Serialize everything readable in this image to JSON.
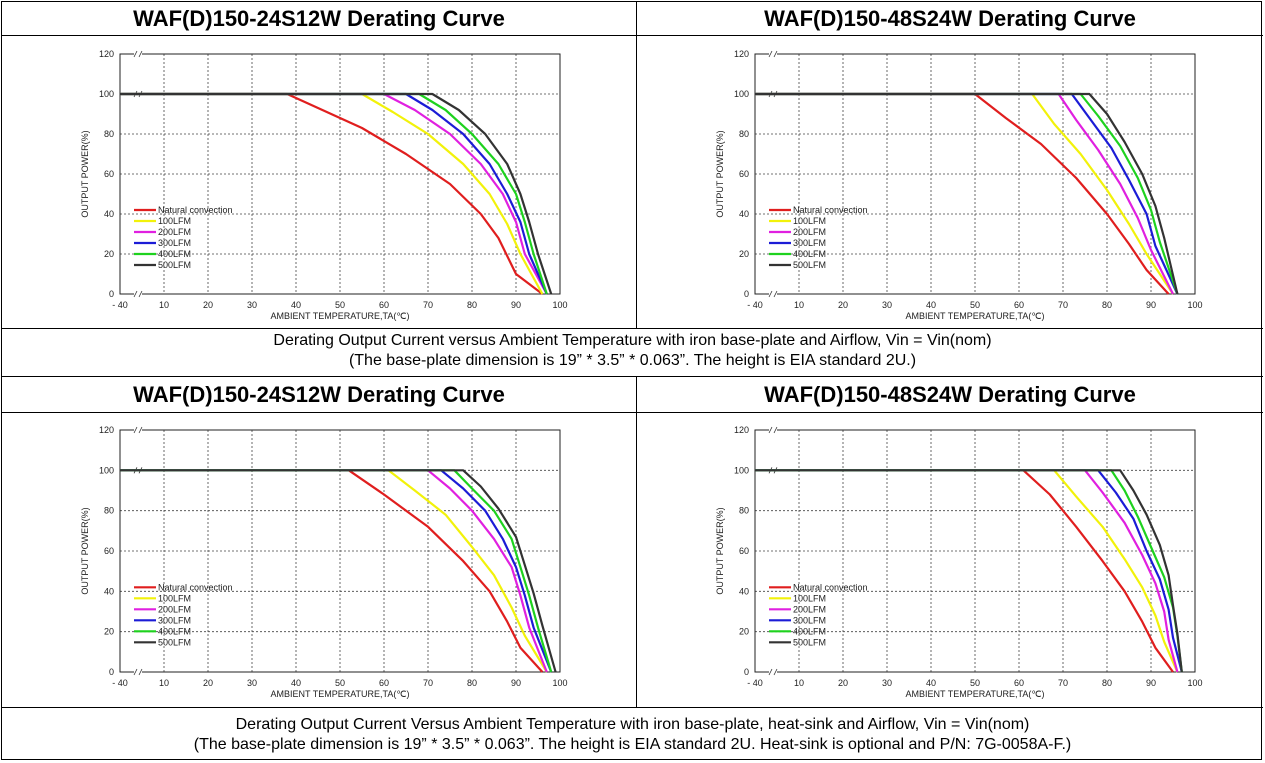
{
  "panels": [
    {
      "title": "WAF(D)150-24S12W Derating Curve",
      "chart_data": {
        "type": "line",
        "xlabel": "AMBIENT TEMPERATURE,TA(℃)",
        "ylabel": "OUTPUT POWER(%)",
        "x_ticks": [
          "- 40",
          "10",
          "20",
          "30",
          "40",
          "50",
          "60",
          "70",
          "80",
          "90",
          "100"
        ],
        "y_ticks": [
          0,
          20,
          40,
          60,
          80,
          100,
          120
        ],
        "xlim": [
          5,
          100
        ],
        "ylim": [
          0,
          120
        ],
        "grid": true,
        "axis_break": true,
        "legend_position": "bottom-left",
        "series": [
          {
            "name": "Natural convection",
            "color": "#e01e1e",
            "x": [
              -40,
              38,
              45,
              55,
              65,
              75,
              82,
              86,
              90,
              96
            ],
            "y": [
              100,
              100,
              93,
              83,
              70,
              55,
              40,
              28,
              10,
              0
            ]
          },
          {
            "name": "100LFM",
            "color": "#f2f20a",
            "x": [
              -40,
              55,
              62,
              70,
              78,
              84,
              88,
              91,
              96
            ],
            "y": [
              100,
              100,
              91,
              80,
              65,
              50,
              35,
              20,
              0
            ]
          },
          {
            "name": "200LFM",
            "color": "#e020e0",
            "x": [
              -40,
              60,
              67,
              75,
              82,
              87,
              90,
              92,
              97
            ],
            "y": [
              100,
              100,
              92,
              80,
              65,
              50,
              36,
              20,
              0
            ]
          },
          {
            "name": "300LFM",
            "color": "#1c1cd6",
            "x": [
              -40,
              65,
              71,
              78,
              84,
              88,
              91,
              93,
              97
            ],
            "y": [
              100,
              100,
              92,
              80,
              65,
              50,
              36,
              20,
              0
            ]
          },
          {
            "name": "400LFM",
            "color": "#1ed21e",
            "x": [
              -40,
              68,
              74,
              80,
              86,
              90,
              92,
              94,
              97
            ],
            "y": [
              100,
              100,
              92,
              80,
              65,
              50,
              36,
              20,
              0
            ]
          },
          {
            "name": "500LFM",
            "color": "#333333",
            "x": [
              -40,
              71,
              77,
              83,
              88,
              91,
              93,
              95,
              98
            ],
            "y": [
              100,
              100,
              92,
              80,
              65,
              50,
              36,
              20,
              0
            ]
          }
        ]
      }
    },
    {
      "title": "WAF(D)150-48S24W Derating Curve",
      "chart_data": {
        "type": "line",
        "xlabel": "AMBIENT TEMPERATURE,TA(℃)",
        "ylabel": "OUTPUT POWER(%)",
        "x_ticks": [
          "- 40",
          "10",
          "20",
          "30",
          "40",
          "50",
          "60",
          "70",
          "80",
          "90",
          "100"
        ],
        "y_ticks": [
          0,
          20,
          40,
          60,
          80,
          100,
          120
        ],
        "xlim": [
          5,
          100
        ],
        "ylim": [
          0,
          120
        ],
        "grid": true,
        "axis_break": true,
        "legend_position": "bottom-left",
        "series": [
          {
            "name": "Natural convection",
            "color": "#e01e1e",
            "x": [
              -40,
              50,
              57,
              65,
              73,
              80,
              85,
              89,
              94
            ],
            "y": [
              100,
              100,
              88,
              75,
              58,
              40,
              25,
              12,
              0
            ]
          },
          {
            "name": "100LFM",
            "color": "#f2f20a",
            "x": [
              -40,
              63,
              68,
              74,
              80,
              85,
              89,
              95
            ],
            "y": [
              100,
              100,
              85,
              70,
              52,
              35,
              20,
              0
            ]
          },
          {
            "name": "200LFM",
            "color": "#e020e0",
            "x": [
              -40,
              69,
              73,
              78,
              83,
              87,
              90,
              95
            ],
            "y": [
              100,
              100,
              87,
              72,
              55,
              38,
              22,
              0
            ]
          },
          {
            "name": "300LFM",
            "color": "#1c1cd6",
            "x": [
              -40,
              72,
              76,
              81,
              85,
              89,
              91,
              96
            ],
            "y": [
              100,
              100,
              88,
              73,
              57,
              40,
              24,
              0
            ]
          },
          {
            "name": "400LFM",
            "color": "#1ed21e",
            "x": [
              -40,
              74,
              78,
              83,
              87,
              90,
              92,
              96
            ],
            "y": [
              100,
              100,
              89,
              74,
              58,
              42,
              26,
              0
            ]
          },
          {
            "name": "500LFM",
            "color": "#333333",
            "x": [
              -40,
              76,
              80,
              84,
              88,
              91,
              93,
              96
            ],
            "y": [
              100,
              100,
              90,
              76,
              60,
              44,
              28,
              0
            ]
          }
        ]
      }
    },
    {
      "title": "WAF(D)150-24S12W Derating Curve",
      "chart_data": {
        "type": "line",
        "xlabel": "AMBIENT TEMPERATURE,TA(℃)",
        "ylabel": "OUTPUT POWER(%)",
        "x_ticks": [
          "- 40",
          "10",
          "20",
          "30",
          "40",
          "50",
          "60",
          "70",
          "80",
          "90",
          "100"
        ],
        "y_ticks": [
          0,
          20,
          40,
          60,
          80,
          100,
          120
        ],
        "xlim": [
          5,
          100
        ],
        "ylim": [
          0,
          120
        ],
        "grid": true,
        "axis_break": true,
        "legend_position": "bottom-left",
        "series": [
          {
            "name": "Natural convection",
            "color": "#e01e1e",
            "x": [
              -40,
              52,
              60,
              70,
              78,
              84,
              88,
              91,
              96
            ],
            "y": [
              100,
              100,
              88,
              72,
              55,
              40,
              25,
              12,
              0
            ]
          },
          {
            "name": "100LFM",
            "color": "#f2f20a",
            "x": [
              -40,
              61,
              67,
              74,
              80,
              85,
              89,
              92,
              97
            ],
            "y": [
              100,
              100,
              90,
              78,
              62,
              48,
              32,
              18,
              0
            ]
          },
          {
            "name": "200LFM",
            "color": "#e020e0",
            "x": [
              -40,
              70,
              75,
              80,
              85,
              89,
              91,
              93,
              97
            ],
            "y": [
              100,
              100,
              91,
              80,
              66,
              52,
              38,
              22,
              0
            ]
          },
          {
            "name": "300LFM",
            "color": "#1c1cd6",
            "x": [
              -40,
              73,
              78,
              83,
              87,
              90,
              92,
              94,
              98
            ],
            "y": [
              100,
              100,
              91,
              80,
              66,
              52,
              38,
              22,
              0
            ]
          },
          {
            "name": "400LFM",
            "color": "#1ed21e",
            "x": [
              -40,
              76,
              80,
              85,
              89,
              91,
              93,
              95,
              98
            ],
            "y": [
              100,
              100,
              91,
              80,
              66,
              52,
              38,
              22,
              0
            ]
          },
          {
            "name": "500LFM",
            "color": "#333333",
            "x": [
              -40,
              78,
              82,
              86,
              90,
              92,
              94,
              96,
              99
            ],
            "y": [
              100,
              100,
              92,
              81,
              67,
              53,
              39,
              23,
              0
            ]
          }
        ]
      }
    },
    {
      "title": "WAF(D)150-48S24W Derating Curve",
      "chart_data": {
        "type": "line",
        "xlabel": "AMBIENT TEMPERATURE,TA(℃)",
        "ylabel": "OUTPUT POWER(%)",
        "x_ticks": [
          "- 40",
          "10",
          "20",
          "30",
          "40",
          "50",
          "60",
          "70",
          "80",
          "90",
          "100"
        ],
        "y_ticks": [
          0,
          20,
          40,
          60,
          80,
          100,
          120
        ],
        "xlim": [
          5,
          100
        ],
        "ylim": [
          0,
          120
        ],
        "grid": true,
        "axis_break": true,
        "legend_position": "bottom-left",
        "series": [
          {
            "name": "Natural convection",
            "color": "#e01e1e",
            "x": [
              -40,
              61,
              67,
              73,
              79,
              84,
              88,
              91,
              95
            ],
            "y": [
              100,
              100,
              88,
              72,
              55,
              40,
              25,
              12,
              0
            ]
          },
          {
            "name": "100LFM",
            "color": "#f2f20a",
            "x": [
              -40,
              68,
              73,
              79,
              84,
              88,
              91,
              93,
              96
            ],
            "y": [
              100,
              100,
              87,
              72,
              56,
              42,
              28,
              15,
              0
            ]
          },
          {
            "name": "200LFM",
            "color": "#e020e0",
            "x": [
              -40,
              75,
              79,
              84,
              88,
              91,
              93,
              94,
              96
            ],
            "y": [
              100,
              100,
              89,
              74,
              58,
              44,
              30,
              16,
              0
            ]
          },
          {
            "name": "300LFM",
            "color": "#1c1cd6",
            "x": [
              -40,
              78,
              82,
              86,
              89,
              92,
              94,
              95,
              97
            ],
            "y": [
              100,
              100,
              89,
              76,
              60,
              46,
              31,
              17,
              0
            ]
          },
          {
            "name": "400LFM",
            "color": "#1ed21e",
            "x": [
              -40,
              81,
              84,
              87,
              90,
              93,
              95,
              96,
              97
            ],
            "y": [
              100,
              100,
              90,
              77,
              62,
              47,
              32,
              18,
              0
            ]
          },
          {
            "name": "500LFM",
            "color": "#333333",
            "x": [
              -40,
              83,
              86,
              89,
              92,
              94,
              95,
              96,
              97
            ],
            "y": [
              100,
              100,
              90,
              78,
              63,
              48,
              33,
              19,
              0
            ]
          }
        ]
      }
    }
  ],
  "captions": [
    {
      "line1": "Derating Output Current versus Ambient Temperature with iron base-plate and Airflow, Vin = Vin(nom)",
      "line2": "(The base-plate dimension is 19” * 3.5” * 0.063”. The height is EIA standard 2U.)"
    },
    {
      "line1": "Derating Output Current Versus Ambient Temperature with iron base-plate, heat-sink and Airflow, Vin = Vin(nom)",
      "line2": "(The base-plate dimension is 19” * 3.5” * 0.063”. The height is EIA standard 2U. Heat-sink is optional and P/N: 7G-0058A-F.)"
    }
  ]
}
